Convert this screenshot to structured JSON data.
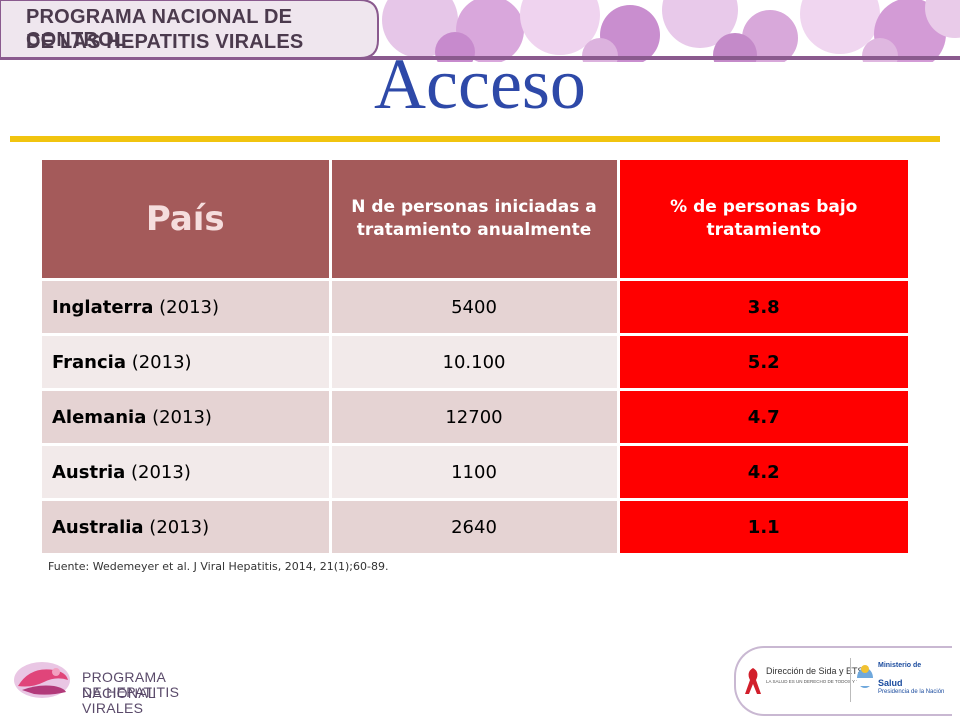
{
  "banner": {
    "line1": "PROGRAMA NACIONAL DE CONTROL",
    "line2": "DE LAS HEPATITIS VIRALES"
  },
  "title": "Acceso",
  "table": {
    "headers": {
      "country": "País",
      "n_treated": "N de personas iniciadas a tratamiento anualmente",
      "pct_treated": "% de personas  bajo tratamiento"
    },
    "rows": [
      {
        "country": "Inglaterra",
        "year": " (2013)",
        "n": "5400",
        "pct": "3.8"
      },
      {
        "country": "Francia",
        "year": " (2013)",
        "n": "10.100",
        "pct": "5.2"
      },
      {
        "country": "Alemania",
        "year": " (2013)",
        "n": "12700",
        "pct": "4.7"
      },
      {
        "country": "Austria",
        "year": " (2013)",
        "n": "1100",
        "pct": "4.2"
      },
      {
        "country": "Australia",
        "year": " (2013)",
        "n": "2640",
        "pct": "1.1"
      }
    ]
  },
  "source": "Fuente: Wedemeyer et al. J Viral Hepatitis, 2014,  21(1);60-89.",
  "footer": {
    "left_logo": {
      "line1": "PROGRAMA NACIONAL",
      "line2": "DE HEPATITIS VIRALES"
    },
    "right_logo": {
      "unit": "Dirección de Sida y ETS",
      "tagline": "LA SALUD ES UN DERECHO DE TODOS Y TODAS",
      "ministry_l1": "Ministerio de",
      "ministry_l2": "Salud",
      "presidency": "Presidencia de la Nación"
    }
  },
  "colors": {
    "header_maroon": "#a45a5a",
    "highlight_red": "#ff0000",
    "title_blue": "#2e49a8",
    "rule_yellow": "#f1c40f"
  }
}
